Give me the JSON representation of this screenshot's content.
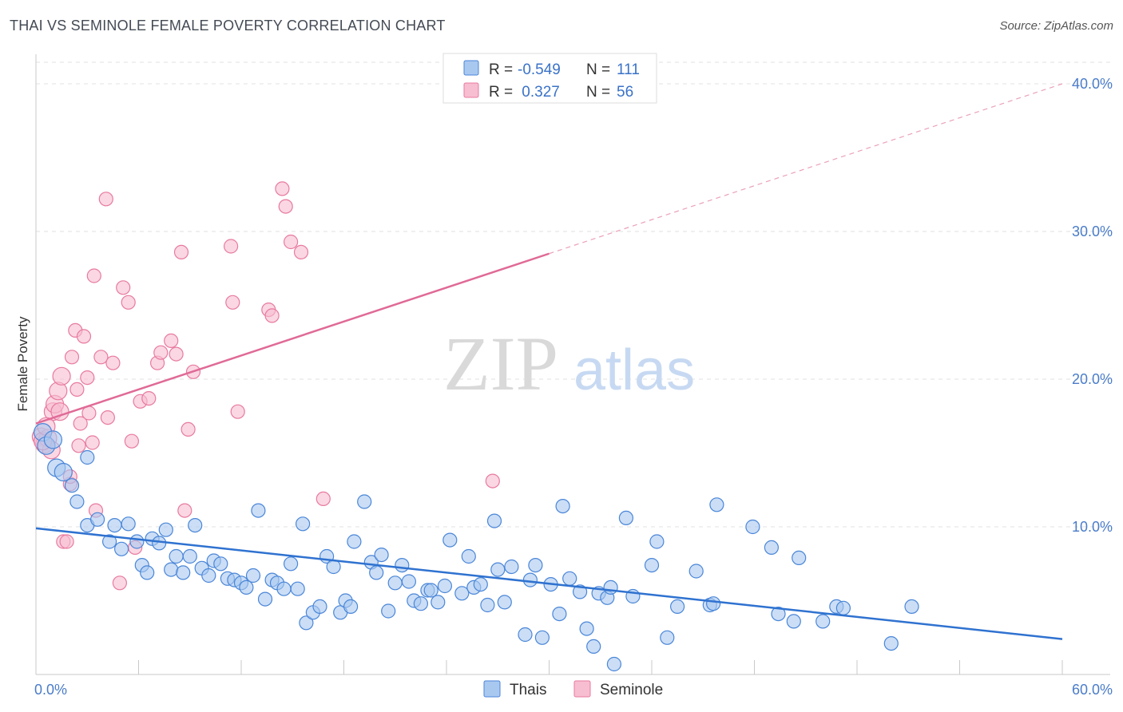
{
  "title": "THAI VS SEMINOLE FEMALE POVERTY CORRELATION CHART",
  "source": "Source: ZipAtlas.com",
  "watermark": {
    "zip": "ZIP",
    "atlas": "atlas"
  },
  "colors": {
    "thais": "#4a86d8",
    "thais_fill": "#a9c8f0",
    "seminole": "#e87aa0",
    "seminole_fill": "#f7bdd0",
    "text_blue": "#3a72c8"
  },
  "legend_top": [
    {
      "r_label": "R =",
      "r_value": "-0.549",
      "n_label": "N =",
      "n_value": "111"
    },
    {
      "r_label": "R =",
      "r_value": " 0.327",
      "n_label": "N =",
      "n_value": "56"
    }
  ],
  "legend_bottom": [
    "Thais",
    "Seminole"
  ],
  "chart_data": {
    "type": "scatter",
    "title": "THAI VS SEMINOLE FEMALE POVERTY CORRELATION CHART",
    "xlabel": "",
    "ylabel": "Female Poverty",
    "xlim": [
      0,
      60
    ],
    "ylim": [
      0,
      42
    ],
    "x_tick_labels": [
      "0.0%",
      "60.0%"
    ],
    "y_ticks": [
      10,
      20,
      30,
      40
    ],
    "y_tick_labels": [
      "10.0%",
      "20.0%",
      "30.0%",
      "40.0%"
    ],
    "grid": true,
    "legend_position": "top-center",
    "series": [
      {
        "name": "Thais",
        "r": -0.549,
        "n": 111,
        "trend": {
          "x": [
            0,
            60
          ],
          "y": [
            9.9,
            2.4
          ]
        },
        "points": [
          [
            0.4,
            16.4
          ],
          [
            0.6,
            15.5
          ],
          [
            1.2,
            14.0
          ],
          [
            1.6,
            13.7
          ],
          [
            2.1,
            12.8
          ],
          [
            2.4,
            11.7
          ],
          [
            3.0,
            10.1
          ],
          [
            3.6,
            10.5
          ],
          [
            4.3,
            9.0
          ],
          [
            4.6,
            10.1
          ],
          [
            5.0,
            8.5
          ],
          [
            5.4,
            10.2
          ],
          [
            3.0,
            14.7
          ],
          [
            5.9,
            9.0
          ],
          [
            6.2,
            7.4
          ],
          [
            6.5,
            6.9
          ],
          [
            6.8,
            9.2
          ],
          [
            7.2,
            8.9
          ],
          [
            7.6,
            9.8
          ],
          [
            7.9,
            7.1
          ],
          [
            8.2,
            8.0
          ],
          [
            8.6,
            6.9
          ],
          [
            9.0,
            8.0
          ],
          [
            9.3,
            10.1
          ],
          [
            9.7,
            7.2
          ],
          [
            10.1,
            6.7
          ],
          [
            10.4,
            7.7
          ],
          [
            10.8,
            7.5
          ],
          [
            11.2,
            6.5
          ],
          [
            11.6,
            6.4
          ],
          [
            12.0,
            6.2
          ],
          [
            12.3,
            5.9
          ],
          [
            12.7,
            6.7
          ],
          [
            13.0,
            11.1
          ],
          [
            13.4,
            5.1
          ],
          [
            13.8,
            6.4
          ],
          [
            14.1,
            6.2
          ],
          [
            14.5,
            5.8
          ],
          [
            14.9,
            7.5
          ],
          [
            15.3,
            5.8
          ],
          [
            15.6,
            10.2
          ],
          [
            15.8,
            3.5
          ],
          [
            16.2,
            4.2
          ],
          [
            16.6,
            4.6
          ],
          [
            17.0,
            8.0
          ],
          [
            17.4,
            7.3
          ],
          [
            17.8,
            4.2
          ],
          [
            18.1,
            5.0
          ],
          [
            18.4,
            4.6
          ],
          [
            18.6,
            9.0
          ],
          [
            19.2,
            11.7
          ],
          [
            19.6,
            7.6
          ],
          [
            19.9,
            6.9
          ],
          [
            20.2,
            8.1
          ],
          [
            20.6,
            4.3
          ],
          [
            21.0,
            6.2
          ],
          [
            21.4,
            7.4
          ],
          [
            21.8,
            6.3
          ],
          [
            22.1,
            5.0
          ],
          [
            22.5,
            4.8
          ],
          [
            22.9,
            5.7
          ],
          [
            23.1,
            5.7
          ],
          [
            23.5,
            4.9
          ],
          [
            23.9,
            6.0
          ],
          [
            24.2,
            9.1
          ],
          [
            24.9,
            5.5
          ],
          [
            25.3,
            8.0
          ],
          [
            25.6,
            5.9
          ],
          [
            26.0,
            6.1
          ],
          [
            26.4,
            4.7
          ],
          [
            26.8,
            10.4
          ],
          [
            27.0,
            7.1
          ],
          [
            27.4,
            4.9
          ],
          [
            27.8,
            7.3
          ],
          [
            28.6,
            2.7
          ],
          [
            28.9,
            6.4
          ],
          [
            29.2,
            7.4
          ],
          [
            29.6,
            2.5
          ],
          [
            30.1,
            6.1
          ],
          [
            30.6,
            4.1
          ],
          [
            30.8,
            11.4
          ],
          [
            31.2,
            6.5
          ],
          [
            31.8,
            5.6
          ],
          [
            32.2,
            3.1
          ],
          [
            32.6,
            1.9
          ],
          [
            32.9,
            5.5
          ],
          [
            33.4,
            5.2
          ],
          [
            33.6,
            5.9
          ],
          [
            33.8,
            0.7
          ],
          [
            34.5,
            10.6
          ],
          [
            34.9,
            5.3
          ],
          [
            36.0,
            7.4
          ],
          [
            36.3,
            9.0
          ],
          [
            36.9,
            2.5
          ],
          [
            37.5,
            4.6
          ],
          [
            38.6,
            7.0
          ],
          [
            39.4,
            4.7
          ],
          [
            39.6,
            4.8
          ],
          [
            39.8,
            11.5
          ],
          [
            41.9,
            10.0
          ],
          [
            43.0,
            8.6
          ],
          [
            43.4,
            4.1
          ],
          [
            44.3,
            3.6
          ],
          [
            44.6,
            7.9
          ],
          [
            46.0,
            3.6
          ],
          [
            46.8,
            4.6
          ],
          [
            47.2,
            4.5
          ],
          [
            50.0,
            2.1
          ],
          [
            51.2,
            4.6
          ],
          [
            1.0,
            15.9
          ]
        ]
      },
      {
        "name": "Seminole",
        "r": 0.327,
        "n": 56,
        "trend": {
          "x": [
            0,
            30
          ],
          "y": [
            17.0,
            28.5
          ]
        },
        "trend_extension": {
          "x": [
            30,
            60
          ],
          "y": [
            28.5,
            40.0
          ]
        },
        "points": [
          [
            0.3,
            16.1
          ],
          [
            0.5,
            15.6
          ],
          [
            0.7,
            16.0
          ],
          [
            0.9,
            15.2
          ],
          [
            1.0,
            17.8
          ],
          [
            1.1,
            18.3
          ],
          [
            1.3,
            19.2
          ],
          [
            1.4,
            17.8
          ],
          [
            1.5,
            20.2
          ],
          [
            1.6,
            9.0
          ],
          [
            1.8,
            9.0
          ],
          [
            2.0,
            12.9
          ],
          [
            2.0,
            13.4
          ],
          [
            2.1,
            21.5
          ],
          [
            2.3,
            23.3
          ],
          [
            2.4,
            19.3
          ],
          [
            2.5,
            15.5
          ],
          [
            2.6,
            17.0
          ],
          [
            2.8,
            22.9
          ],
          [
            3.0,
            20.1
          ],
          [
            3.1,
            17.7
          ],
          [
            3.3,
            15.7
          ],
          [
            3.4,
            27.0
          ],
          [
            3.5,
            11.1
          ],
          [
            3.8,
            21.5
          ],
          [
            4.1,
            32.2
          ],
          [
            4.2,
            17.4
          ],
          [
            4.5,
            21.1
          ],
          [
            4.9,
            6.2
          ],
          [
            5.1,
            26.2
          ],
          [
            5.4,
            25.2
          ],
          [
            5.6,
            15.8
          ],
          [
            5.8,
            8.6
          ],
          [
            6.1,
            18.5
          ],
          [
            6.6,
            18.7
          ],
          [
            7.1,
            21.1
          ],
          [
            7.3,
            21.8
          ],
          [
            7.9,
            22.6
          ],
          [
            8.2,
            21.7
          ],
          [
            8.5,
            28.6
          ],
          [
            8.7,
            11.1
          ],
          [
            8.9,
            16.6
          ],
          [
            9.2,
            20.5
          ],
          [
            11.4,
            29.0
          ],
          [
            11.5,
            25.2
          ],
          [
            11.8,
            17.8
          ],
          [
            13.6,
            24.7
          ],
          [
            13.8,
            24.3
          ],
          [
            14.4,
            32.9
          ],
          [
            14.6,
            31.7
          ],
          [
            14.9,
            29.3
          ],
          [
            15.5,
            28.6
          ],
          [
            16.8,
            11.9
          ],
          [
            26.7,
            13.1
          ],
          [
            0.4,
            15.8
          ],
          [
            0.6,
            16.8
          ]
        ]
      }
    ]
  }
}
